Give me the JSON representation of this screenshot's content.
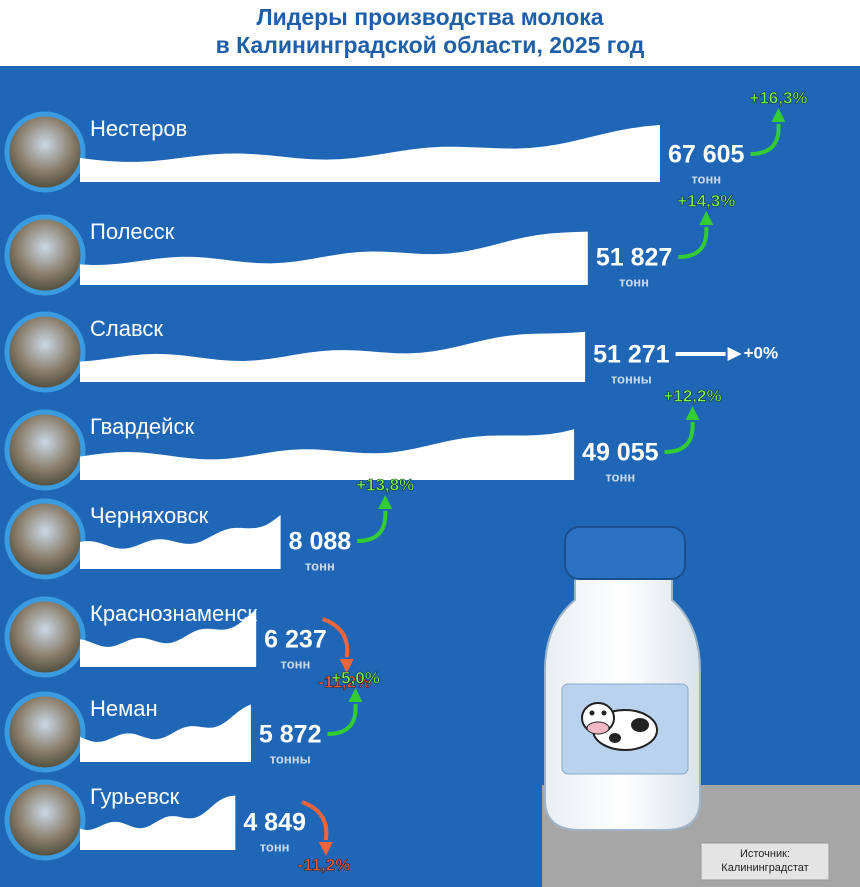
{
  "chart_data": {
    "type": "bar",
    "orientation": "horizontal",
    "scale": "sqrt",
    "title": [
      "Лидеры производства молока",
      "в Калининградской области, 2025 год"
    ],
    "categories": [
      "Нестеров",
      "Полесск",
      "Славск",
      "Гвардейск",
      "Черняховск",
      "Краснознаменск",
      "Неман",
      "Гурьевск"
    ],
    "values": [
      67605,
      51827,
      51271,
      49055,
      8088,
      6237,
      5872,
      4849
    ],
    "value_labels": [
      "67 605",
      "51 827",
      "51 271",
      "49 055",
      "8 088",
      "6 237",
      "5 872",
      "4 849"
    ],
    "units": [
      "тонн",
      "тонн",
      "тонны",
      "тонн",
      "тонн",
      "тонн",
      "тонны",
      "тонн"
    ],
    "color": "#ffffff",
    "changes": [
      16.3,
      14.3,
      0,
      12.2,
      13.8,
      -11.2,
      5.0,
      -11.2
    ],
    "change_labels": [
      "+16,3%",
      "+14,3%",
      "+0%",
      "+12,2%",
      "+13,8%",
      "-11,2%",
      "+5,0%",
      "-11,2%"
    ],
    "source": [
      "Источник:",
      "Калининградстат"
    ]
  }
}
